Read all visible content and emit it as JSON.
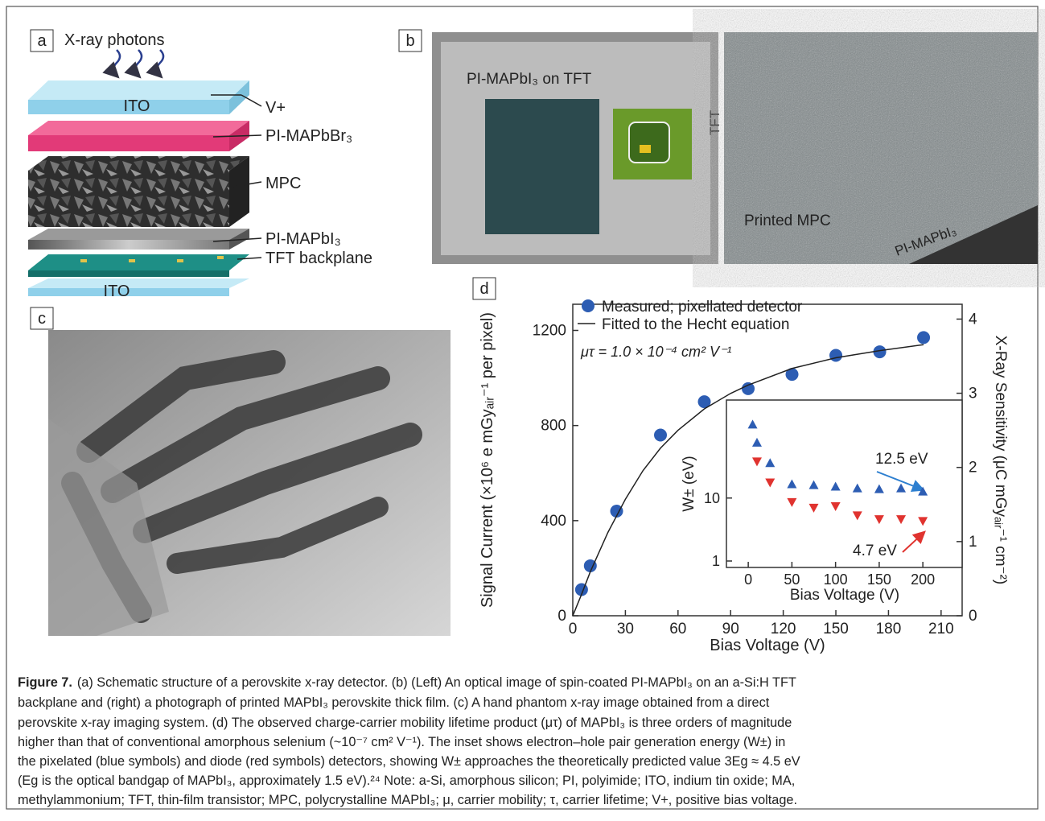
{
  "figure": {
    "panel_labels": [
      "a",
      "b",
      "c",
      "d"
    ],
    "caption": {
      "label": "Figure 7.",
      "lines": [
        "(a) Schematic structure of a perovskite x-ray detector. (b) (Left) An optical image of spin-coated PI-MAPbI₃ on an a-Si:H TFT",
        "backplane and (right) a photograph of printed MAPbI₃ perovskite thick film. (c) A hand phantom x-ray image obtained from a direct",
        "perovskite x-ray imaging system. (d) The observed charge-carrier mobility lifetime product (μτ) of MAPbI₃ is three orders of magnitude",
        "higher than that of conventional amorphous selenium (~10⁻⁷ cm² V⁻¹). The inset shows electron–hole pair generation energy (W±) in",
        "the pixelated (blue symbols) and diode (red symbols) detectors, showing W± approaches the theoretically predicted value 3Eg ≈ 4.5 eV",
        "(Eg is the optical bandgap of MAPbI₃, approximately 1.5 eV).²⁴ Note: a-Si, amorphous silicon; PI, polyimide; ITO, indium tin oxide; MA,",
        "methylammonium; TFT, thin-film transistor; MPC, polycrystalline MAPbI₃; μ, carrier mobility; τ, carrier lifetime; V+, positive bias voltage."
      ]
    }
  },
  "panel_a": {
    "photons": "X-ray photons",
    "top_layer": "ITO",
    "bottom_layer": "ITO",
    "callouts": [
      "V+",
      "PI-MAPbBr₃",
      "MPC",
      "PI-MAPbI₃",
      "TFT backplane"
    ]
  },
  "panel_b": {
    "left_label": "PI-MAPbI₃ on TFT",
    "inset_label": "TFT",
    "right_label": "Printed MPC",
    "film_label": "PI-MAPbI₃"
  },
  "chart_data": [
    {
      "type": "scatter",
      "xlabel": "Bias Voltage (V)",
      "ylabel": "Signal Current (×10⁶ e mGyₐᵢᵣ⁻¹ per pixel)",
      "y2label": "X-Ray Sensitivity (μC mGyₐᵢᵣ⁻¹ cm⁻²)",
      "annotation": "μτ = 1.0 × 10⁻⁴ cm² V⁻¹",
      "legend": "upper left",
      "xlim": [
        0,
        222
      ],
      "xticks": [
        0,
        30,
        60,
        90,
        120,
        150,
        180,
        210
      ],
      "ylim": [
        0,
        1310
      ],
      "yticks": [
        0,
        400,
        800,
        1200
      ],
      "y2lim": [
        0,
        4.2
      ],
      "y2ticks": [
        0,
        1,
        2,
        3,
        4
      ],
      "series": [
        {
          "name": "Measured; pixellated detector",
          "color": "#2d5db3",
          "marker": "circle",
          "x": [
            5,
            10,
            25,
            50,
            75,
            100,
            125,
            150,
            175,
            200
          ],
          "values": [
            110,
            210,
            440,
            760,
            900,
            955,
            1015,
            1095,
            1110,
            1170
          ]
        },
        {
          "name": "Fitted to the Hecht equation",
          "color": "#222222",
          "marker": "line",
          "x": [
            0,
            5,
            10,
            20,
            30,
            40,
            50,
            60,
            75,
            90,
            100,
            125,
            150,
            175,
            200
          ],
          "values": [
            0,
            90,
            185,
            350,
            490,
            610,
            705,
            780,
            870,
            935,
            970,
            1040,
            1085,
            1115,
            1140
          ]
        }
      ]
    },
    {
      "type": "scatter",
      "log_y": true,
      "xlabel": "Bias Voltage (V)",
      "ylabel": "W± (eV)",
      "xlim": [
        -25,
        245
      ],
      "xticks": [
        0,
        50,
        100,
        150,
        200
      ],
      "ylim": [
        0.79,
        360
      ],
      "yticks": [
        1,
        10
      ],
      "annotations": [
        "12.5 eV",
        "4.7 eV"
      ],
      "series": [
        {
          "color": "#2d5db3",
          "marker": "triangle-up",
          "x": [
            5,
            10,
            25,
            50,
            75,
            100,
            125,
            150,
            175,
            200
          ],
          "values": [
            147,
            76,
            36,
            16.6,
            16.1,
            15.2,
            14.3,
            13.9,
            14.3,
            12.7
          ]
        },
        {
          "color": "#e0332f",
          "marker": "triangle-down",
          "x": [
            10,
            25,
            50,
            75,
            100,
            125,
            150,
            175,
            200
          ],
          "values": [
            38,
            17.6,
            8.6,
            7.0,
            7.4,
            5.3,
            4.6,
            4.6,
            4.3
          ]
        }
      ]
    }
  ]
}
